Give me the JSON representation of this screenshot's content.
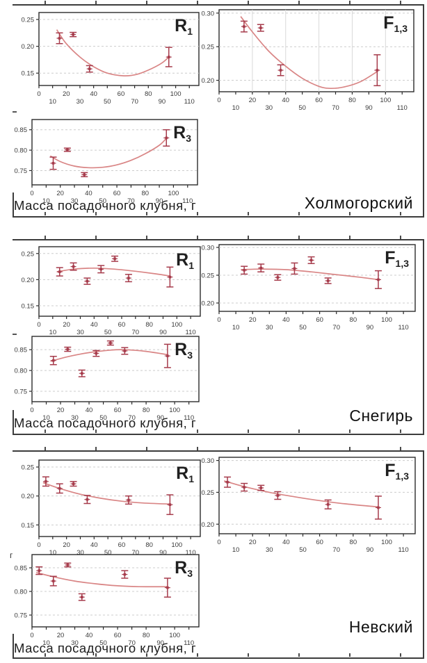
{
  "figure": {
    "x_axis_label": "Масса посадочного клубня, г",
    "panels": [
      {
        "name": "Холмогорский"
      },
      {
        "name": "Снегирь"
      },
      {
        "name": "Невский"
      }
    ],
    "stray_mark": "г",
    "colors": {
      "point": "#a63b4b",
      "curve": "#d98585",
      "grid": "#cccccc",
      "vgrid": "#d9d9d9",
      "frame": "#2b2b2b",
      "axis_text": "#3a3a3a",
      "title_text": "#1f1f1f"
    },
    "xticks_row1": [
      0,
      20,
      40,
      60,
      80,
      100
    ],
    "xticks_row2": [
      10,
      30,
      50,
      70,
      90,
      110
    ]
  },
  "chart_data": [
    {
      "panel": "Холмогорский",
      "type": "scatter",
      "title": "R1",
      "title_main": "R",
      "title_sub": "1",
      "xlabel": "Масса посадочного клубня, г",
      "xlim": [
        0,
        117
      ],
      "ylim": [
        0.127,
        0.263
      ],
      "yticks": [
        0.15,
        0.2,
        0.25
      ],
      "vgrid": false,
      "points": [
        {
          "x": 15,
          "y": 0.215,
          "err": 0.01
        },
        {
          "x": 25,
          "y": 0.222,
          "err": 0.004
        },
        {
          "x": 37,
          "y": 0.158,
          "err": 0.006
        },
        {
          "x": 95,
          "y": 0.18,
          "err": 0.018
        }
      ],
      "curve": [
        [
          13,
          0.231
        ],
        [
          20,
          0.205
        ],
        [
          30,
          0.18
        ],
        [
          40,
          0.162
        ],
        [
          50,
          0.15
        ],
        [
          62,
          0.145
        ],
        [
          72,
          0.148
        ],
        [
          82,
          0.158
        ],
        [
          90,
          0.169
        ],
        [
          95,
          0.18
        ]
      ]
    },
    {
      "panel": "Холмогорский",
      "type": "scatter",
      "title": "F1,3",
      "title_main": "F",
      "title_sub": "1,3",
      "xlabel": "Масса посадочного клубня, г",
      "xlim": [
        0,
        117
      ],
      "ylim": [
        0.183,
        0.305
      ],
      "yticks": [
        0.2,
        0.25,
        0.3
      ],
      "vgrid": true,
      "points": [
        {
          "x": 15,
          "y": 0.28,
          "err": 0.008
        },
        {
          "x": 25,
          "y": 0.278,
          "err": 0.005
        },
        {
          "x": 37,
          "y": 0.215,
          "err": 0.008
        },
        {
          "x": 95,
          "y": 0.215,
          "err": 0.023
        }
      ],
      "curve": [
        [
          13,
          0.295
        ],
        [
          20,
          0.272
        ],
        [
          30,
          0.243
        ],
        [
          40,
          0.221
        ],
        [
          50,
          0.203
        ],
        [
          60,
          0.191
        ],
        [
          67,
          0.188
        ],
        [
          75,
          0.19
        ],
        [
          85,
          0.198
        ],
        [
          95,
          0.213
        ]
      ]
    },
    {
      "panel": "Холмогорский",
      "type": "scatter",
      "title": "R3",
      "title_main": "R",
      "title_sub": "3",
      "xlabel": "Масса посадочного клубня, г",
      "xlim": [
        0,
        117
      ],
      "ylim": [
        0.715,
        0.875
      ],
      "yticks": [
        0.75,
        0.8,
        0.85
      ],
      "vgrid": false,
      "points": [
        {
          "x": 15,
          "y": 0.768,
          "err": 0.015
        },
        {
          "x": 25,
          "y": 0.801,
          "err": 0.004
        },
        {
          "x": 37,
          "y": 0.74,
          "err": 0.005
        },
        {
          "x": 95,
          "y": 0.83,
          "err": 0.02
        }
      ],
      "curve": [
        [
          13,
          0.786
        ],
        [
          20,
          0.772
        ],
        [
          30,
          0.761
        ],
        [
          40,
          0.757
        ],
        [
          50,
          0.758
        ],
        [
          60,
          0.764
        ],
        [
          70,
          0.775
        ],
        [
          80,
          0.791
        ],
        [
          90,
          0.812
        ],
        [
          95,
          0.829
        ]
      ]
    },
    {
      "panel": "Снегирь",
      "type": "scatter",
      "title": "R1",
      "title_main": "R",
      "title_sub": "1",
      "xlabel": "Масса посадочного клубня, г",
      "xlim": [
        0,
        117
      ],
      "ylim": [
        0.13,
        0.263
      ],
      "yticks": [
        0.15,
        0.2,
        0.25
      ],
      "vgrid": false,
      "points": [
        {
          "x": 15,
          "y": 0.215,
          "err": 0.008
        },
        {
          "x": 25,
          "y": 0.225,
          "err": 0.007
        },
        {
          "x": 35,
          "y": 0.197,
          "err": 0.006
        },
        {
          "x": 45,
          "y": 0.22,
          "err": 0.007
        },
        {
          "x": 55,
          "y": 0.24,
          "err": 0.005
        },
        {
          "x": 65,
          "y": 0.203,
          "err": 0.007
        },
        {
          "x": 95,
          "y": 0.205,
          "err": 0.019
        }
      ],
      "curve": [
        [
          13,
          0.215
        ],
        [
          25,
          0.22
        ],
        [
          40,
          0.222
        ],
        [
          55,
          0.22
        ],
        [
          70,
          0.216
        ],
        [
          85,
          0.211
        ],
        [
          95,
          0.207
        ]
      ]
    },
    {
      "panel": "Снегирь",
      "type": "scatter",
      "title": "F1,3",
      "title_main": "F",
      "title_sub": "1,3",
      "xlabel": "Масса посадочного клубня, г",
      "xlim": [
        0,
        117
      ],
      "ylim": [
        0.185,
        0.305
      ],
      "yticks": [
        0.2,
        0.25,
        0.3
      ],
      "vgrid": false,
      "points": [
        {
          "x": 15,
          "y": 0.259,
          "err": 0.007
        },
        {
          "x": 25,
          "y": 0.263,
          "err": 0.007
        },
        {
          "x": 35,
          "y": 0.246,
          "err": 0.005
        },
        {
          "x": 45,
          "y": 0.262,
          "err": 0.01
        },
        {
          "x": 55,
          "y": 0.277,
          "err": 0.006
        },
        {
          "x": 65,
          "y": 0.24,
          "err": 0.005
        },
        {
          "x": 95,
          "y": 0.242,
          "err": 0.016
        }
      ],
      "curve": [
        [
          13,
          0.26
        ],
        [
          25,
          0.261
        ],
        [
          40,
          0.26
        ],
        [
          55,
          0.256
        ],
        [
          70,
          0.251
        ],
        [
          85,
          0.246
        ],
        [
          95,
          0.242
        ]
      ]
    },
    {
      "panel": "Снегирь",
      "type": "scatter",
      "title": "R3",
      "title_main": "R",
      "title_sub": "3",
      "xlabel": "Масса посадочного клубня, г",
      "xlim": [
        0,
        117
      ],
      "ylim": [
        0.725,
        0.882
      ],
      "yticks": [
        0.75,
        0.8,
        0.85
      ],
      "vgrid": false,
      "points": [
        {
          "x": 15,
          "y": 0.824,
          "err": 0.01
        },
        {
          "x": 25,
          "y": 0.851,
          "err": 0.005
        },
        {
          "x": 35,
          "y": 0.793,
          "err": 0.008
        },
        {
          "x": 45,
          "y": 0.841,
          "err": 0.007
        },
        {
          "x": 55,
          "y": 0.866,
          "err": 0.005
        },
        {
          "x": 65,
          "y": 0.847,
          "err": 0.008
        },
        {
          "x": 95,
          "y": 0.835,
          "err": 0.028
        }
      ],
      "curve": [
        [
          13,
          0.822
        ],
        [
          25,
          0.833
        ],
        [
          40,
          0.843
        ],
        [
          55,
          0.849
        ],
        [
          65,
          0.85
        ],
        [
          80,
          0.846
        ],
        [
          95,
          0.838
        ]
      ]
    },
    {
      "panel": "Невский",
      "type": "scatter",
      "title": "R1",
      "title_main": "R",
      "title_sub": "1",
      "xlabel": "Масса посадочного клубня, г",
      "xlim": [
        0,
        117
      ],
      "ylim": [
        0.13,
        0.262
      ],
      "yticks": [
        0.15,
        0.2,
        0.25
      ],
      "vgrid": false,
      "points": [
        {
          "x": 5,
          "y": 0.225,
          "err": 0.008
        },
        {
          "x": 15,
          "y": 0.213,
          "err": 0.008
        },
        {
          "x": 25,
          "y": 0.221,
          "err": 0.004
        },
        {
          "x": 35,
          "y": 0.194,
          "err": 0.007
        },
        {
          "x": 65,
          "y": 0.193,
          "err": 0.007
        },
        {
          "x": 95,
          "y": 0.185,
          "err": 0.017
        }
      ],
      "curve": [
        [
          3,
          0.223
        ],
        [
          15,
          0.213
        ],
        [
          30,
          0.203
        ],
        [
          45,
          0.196
        ],
        [
          60,
          0.191
        ],
        [
          75,
          0.188
        ],
        [
          95,
          0.186
        ]
      ]
    },
    {
      "panel": "Невский",
      "type": "scatter",
      "title": "F1,3",
      "title_main": "F",
      "title_sub": "1,3",
      "xlabel": "Масса посадочного клубня, г",
      "xlim": [
        0,
        117
      ],
      "ylim": [
        0.185,
        0.305
      ],
      "yticks": [
        0.2,
        0.25,
        0.3
      ],
      "vgrid": false,
      "points": [
        {
          "x": 5,
          "y": 0.266,
          "err": 0.008
        },
        {
          "x": 15,
          "y": 0.258,
          "err": 0.006
        },
        {
          "x": 25,
          "y": 0.257,
          "err": 0.004
        },
        {
          "x": 35,
          "y": 0.245,
          "err": 0.006
        },
        {
          "x": 65,
          "y": 0.231,
          "err": 0.007
        },
        {
          "x": 95,
          "y": 0.226,
          "err": 0.018
        }
      ],
      "curve": [
        [
          3,
          0.268
        ],
        [
          15,
          0.259
        ],
        [
          30,
          0.25
        ],
        [
          45,
          0.243
        ],
        [
          60,
          0.237
        ],
        [
          75,
          0.232
        ],
        [
          95,
          0.227
        ]
      ]
    },
    {
      "panel": "Невский",
      "type": "scatter",
      "title": "R3",
      "title_main": "R",
      "title_sub": "3",
      "xlabel": "Масса посадочного клубня, г",
      "xlim": [
        0,
        117
      ],
      "ylim": [
        0.725,
        0.878
      ],
      "yticks": [
        0.75,
        0.8,
        0.85
      ],
      "vgrid": false,
      "points": [
        {
          "x": 5,
          "y": 0.844,
          "err": 0.008
        },
        {
          "x": 15,
          "y": 0.822,
          "err": 0.01
        },
        {
          "x": 25,
          "y": 0.856,
          "err": 0.004
        },
        {
          "x": 35,
          "y": 0.788,
          "err": 0.007
        },
        {
          "x": 65,
          "y": 0.836,
          "err": 0.008
        },
        {
          "x": 95,
          "y": 0.808,
          "err": 0.02
        }
      ],
      "curve": [
        [
          3,
          0.84
        ],
        [
          15,
          0.831
        ],
        [
          30,
          0.822
        ],
        [
          45,
          0.816
        ],
        [
          60,
          0.812
        ],
        [
          75,
          0.81
        ],
        [
          95,
          0.81
        ]
      ]
    }
  ]
}
